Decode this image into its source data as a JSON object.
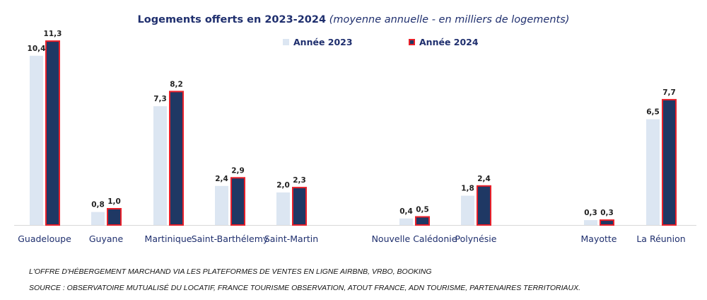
{
  "chart_data": {
    "type": "bar",
    "title": "Logements offerts en 2023-2024",
    "subtitle": "(moyenne annuelle - en milliers de logements)",
    "categories": [
      "Guadeloupe",
      "Guyane",
      "Martinique",
      "Saint-Barthélemy",
      "Saint-Martin",
      "Nouvelle Calédonie",
      "Polynésie",
      "Mayotte",
      "La Réunion"
    ],
    "series": [
      {
        "name": "Année 2023",
        "values": [
          10.4,
          0.8,
          7.3,
          2.4,
          2.0,
          0.4,
          1.8,
          0.3,
          6.5
        ],
        "labels": [
          "10,4",
          "0,8",
          "7,3",
          "2,4",
          "2,0",
          "0,4",
          "1,8",
          "0,3",
          "6,5"
        ]
      },
      {
        "name": "Année 2024",
        "values": [
          11.3,
          1.0,
          8.2,
          2.9,
          2.3,
          0.5,
          2.4,
          0.3,
          7.7
        ],
        "labels": [
          "11,3",
          "1,0",
          "8,2",
          "2,9",
          "2,3",
          "0,5",
          "2,4",
          "0,3",
          "7,7"
        ]
      }
    ],
    "ylim": [
      0,
      12
    ],
    "grid": false,
    "legend_position": "top-right",
    "colors": {
      "series_2023": "#dce6f2",
      "series_2024": "#1f3864",
      "series_2024_border": "#e8202a",
      "axis_text": "#1f2f6e"
    }
  },
  "footnotes": {
    "line1": "L'OFFRE D'HÉBERGEMENT MARCHAND VIA LES PLATEFORMES DE VENTES EN LIGNE AIRBNB, VRBO, BOOKING",
    "line2": "SOURCE : OBSERVATOIRE MUTUALISÉ DU LOCATIF, FRANCE TOURISME OBSERVATION, ATOUT FRANCE, ADN TOURISME, PARTENAIRES TERRITORIAUX."
  }
}
